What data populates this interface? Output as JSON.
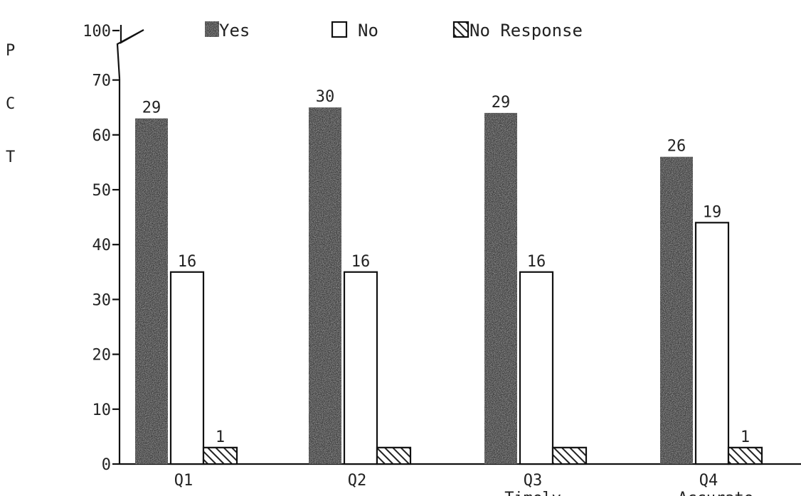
{
  "chart_data": {
    "type": "bar",
    "title": "",
    "ylabel": "P C T",
    "ylabel_letters": [
      "P",
      "C",
      "T"
    ],
    "xlabel": "",
    "categories": [
      "Q1",
      "Q2",
      "Q3",
      "Q4"
    ],
    "category_sublabels": [
      "",
      "",
      "Timely",
      "Accurate"
    ],
    "ylim": [
      0,
      100
    ],
    "axis_break": true,
    "yticks": [
      0,
      10,
      20,
      30,
      40,
      50,
      60,
      70,
      100
    ],
    "ytick_labels": [
      "0",
      "10",
      "20",
      "30",
      "40",
      "50",
      "60",
      "70",
      "100"
    ],
    "legend_position": "top",
    "series": [
      {
        "name": "Yes",
        "values": [
          63,
          65,
          64,
          56
        ],
        "labels": [
          "29",
          "30",
          "29",
          "26"
        ],
        "color": "#3a3a3a",
        "pattern": "solid"
      },
      {
        "name": "No",
        "values": [
          35,
          35,
          35,
          44
        ],
        "labels": [
          "16",
          "16",
          "16",
          "19"
        ],
        "color": "#ffffff",
        "pattern": "outline"
      },
      {
        "name": "No Response",
        "values": [
          3,
          3,
          3,
          3
        ],
        "labels": [
          "1",
          "",
          "",
          "1"
        ],
        "color": "#333333",
        "pattern": "hatched"
      }
    ]
  }
}
